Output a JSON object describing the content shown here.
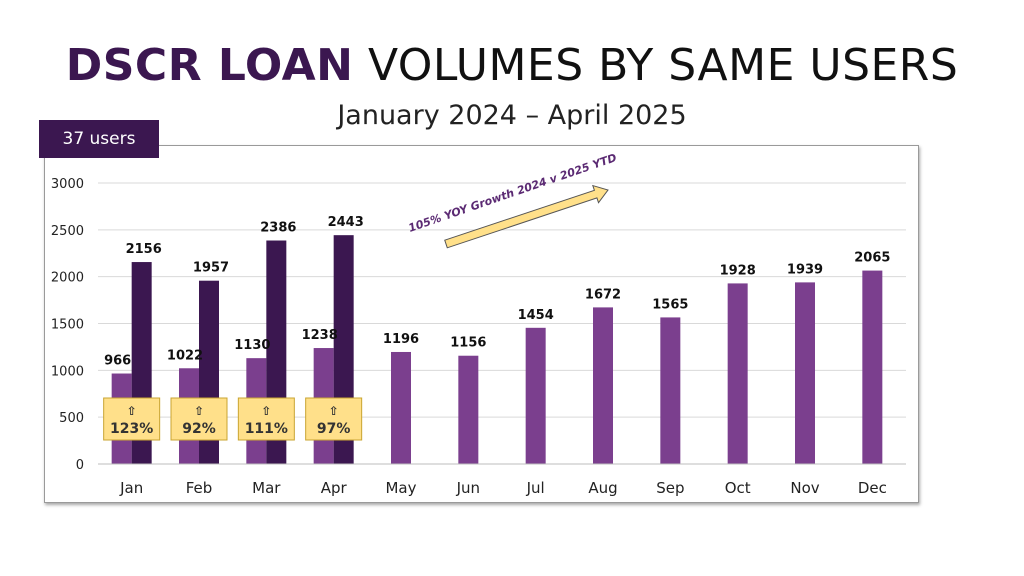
{
  "header": {
    "title_accent": "DSCR LOAN",
    "title_rest": "VOLUMES BY SAME USERS",
    "subtitle": "January 2024 – April 2025",
    "users_badge": "37 users"
  },
  "colors": {
    "series_2024": "#7b3f8e",
    "series_2025": "#3b1750",
    "title_accent": "#3b1750",
    "callout_fill": "#ffe08a",
    "callout_border": "#c9a431",
    "arrow_text": "#5b2a73",
    "grid": "#d9d9d9"
  },
  "chart_data": {
    "type": "bar",
    "title": "DSCR LOAN VOLUMES BY SAME USERS",
    "subtitle": "January 2024 – April 2025",
    "categories": [
      "Jan",
      "Feb",
      "Mar",
      "Apr",
      "May",
      "Jun",
      "Jul",
      "Aug",
      "Sep",
      "Oct",
      "Nov",
      "Dec"
    ],
    "series": [
      {
        "name": "2024",
        "values": [
          966,
          1022,
          1130,
          1238,
          1196,
          1156,
          1454,
          1672,
          1565,
          1928,
          1939,
          2065
        ]
      },
      {
        "name": "2025",
        "values": [
          2156,
          1957,
          2386,
          2443,
          null,
          null,
          null,
          null,
          null,
          null,
          null,
          null
        ]
      }
    ],
    "yticks": [
      0,
      500,
      1000,
      1500,
      2000,
      2500,
      3000
    ],
    "ylim": [
      0,
      3000
    ],
    "grid": true,
    "growth_callouts": [
      {
        "category": "Jan",
        "arrow": "⇧",
        "label": "123%"
      },
      {
        "category": "Feb",
        "arrow": "⇧",
        "label": "92%"
      },
      {
        "category": "Mar",
        "arrow": "⇧",
        "label": "111%"
      },
      {
        "category": "Apr",
        "arrow": "⇧",
        "label": "97%"
      }
    ],
    "annotation": "105% YOY Growth 2024 v 2025 YTD"
  }
}
